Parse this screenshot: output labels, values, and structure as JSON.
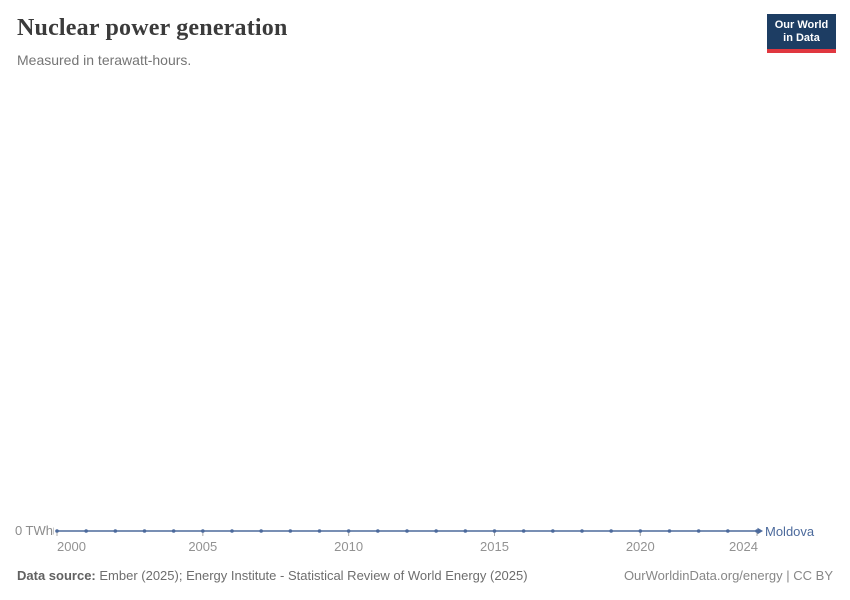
{
  "header": {
    "title": "Nuclear power generation",
    "subtitle": "Measured in terawatt-hours.",
    "logo": {
      "line1": "Our World",
      "line2": "in Data"
    }
  },
  "chart_data": {
    "type": "line",
    "title": "Nuclear power generation",
    "subtitle": "Measured in terawatt-hours.",
    "unit": "TWh",
    "x_ticks": [
      2000,
      2005,
      2010,
      2015,
      2020,
      2024
    ],
    "y_tick_labels": [
      "0 TWh"
    ],
    "xlim": [
      2000,
      2024
    ],
    "ylim": [
      0,
      0
    ],
    "grid": false,
    "legend_position": "end-of-line",
    "series": [
      {
        "name": "Moldova",
        "color": "#4c6a9c",
        "x": [
          2000,
          2001,
          2002,
          2003,
          2004,
          2005,
          2006,
          2007,
          2008,
          2009,
          2010,
          2011,
          2012,
          2013,
          2014,
          2015,
          2016,
          2017,
          2018,
          2019,
          2020,
          2021,
          2022,
          2023,
          2024
        ],
        "values": [
          0,
          0,
          0,
          0,
          0,
          0,
          0,
          0,
          0,
          0,
          0,
          0,
          0,
          0,
          0,
          0,
          0,
          0,
          0,
          0,
          0,
          0,
          0,
          0,
          0
        ]
      }
    ]
  },
  "axis": {
    "y_zero_label": "0 TWh"
  },
  "entity_label": "Moldova",
  "footer": {
    "source_label": "Data source:",
    "source_text": " Ember (2025); Energy Institute - Statistical Review of World Energy (2025)",
    "credit": "OurWorldinData.org/energy | CC BY"
  },
  "colors": {
    "line": "#4c6a9c",
    "tick": "#a9a9a9",
    "logo_bg": "#1d3d63",
    "logo_stripe": "#e0373f"
  }
}
